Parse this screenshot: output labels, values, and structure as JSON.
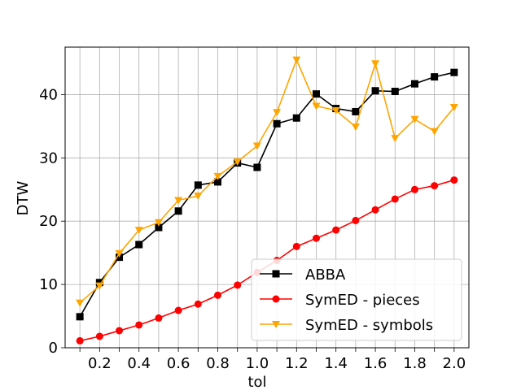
{
  "chart_data": {
    "type": "line",
    "title": "",
    "xlabel": "tol",
    "ylabel": "DTW",
    "xlim": [
      0.025,
      2.075
    ],
    "ylim": [
      0,
      47.5
    ],
    "x_ticks": [
      0.2,
      0.4,
      0.6,
      0.8,
      1.0,
      1.2,
      1.4,
      1.6,
      1.8,
      2.0
    ],
    "x_tick_labels": [
      "0.2",
      "0.4",
      "0.6",
      "0.8",
      "1.0",
      "1.2",
      "1.4",
      "1.6",
      "1.8",
      "2.0"
    ],
    "x_gridlines": [
      0.1,
      0.2,
      0.3,
      0.4,
      0.5,
      0.6,
      0.7,
      0.8,
      0.9,
      1.0,
      1.1,
      1.2,
      1.3,
      1.4,
      1.5,
      1.6,
      1.7,
      1.8,
      1.9,
      2.0
    ],
    "y_ticks": [
      0,
      10,
      20,
      30,
      40
    ],
    "y_tick_labels": [
      "0",
      "10",
      "20",
      "30",
      "40"
    ],
    "grid": true,
    "legend_position": "lower-right",
    "x": [
      0.1,
      0.2,
      0.3,
      0.4,
      0.5,
      0.6,
      0.7,
      0.8,
      0.9,
      1.0,
      1.1,
      1.2,
      1.3,
      1.4,
      1.5,
      1.6,
      1.7,
      1.8,
      1.9,
      2.0
    ],
    "series": [
      {
        "name": "ABBA",
        "color": "#000000",
        "marker": "square",
        "values": [
          4.9,
          10.3,
          14.3,
          16.3,
          19.0,
          21.6,
          25.7,
          26.2,
          29.2,
          28.5,
          35.4,
          36.3,
          40.1,
          37.8,
          37.3,
          40.6,
          40.5,
          41.7,
          42.8,
          43.5
        ]
      },
      {
        "name": "SymED - pieces",
        "color": "#ff0000",
        "marker": "circle",
        "values": [
          1.1,
          1.8,
          2.7,
          3.6,
          4.7,
          5.9,
          6.9,
          8.3,
          9.9,
          11.9,
          13.8,
          16.0,
          17.3,
          18.6,
          20.1,
          21.8,
          23.5,
          25.0,
          25.6,
          26.5
        ]
      },
      {
        "name": "SymED - symbols",
        "color": "#ffa500",
        "marker": "triangle-down",
        "values": [
          7.1,
          9.8,
          14.9,
          18.6,
          19.8,
          23.3,
          24.0,
          27.1,
          29.4,
          31.9,
          37.2,
          45.5,
          38.2,
          37.5,
          34.9,
          44.9,
          33.1,
          36.1,
          34.2,
          38.0
        ]
      }
    ]
  }
}
